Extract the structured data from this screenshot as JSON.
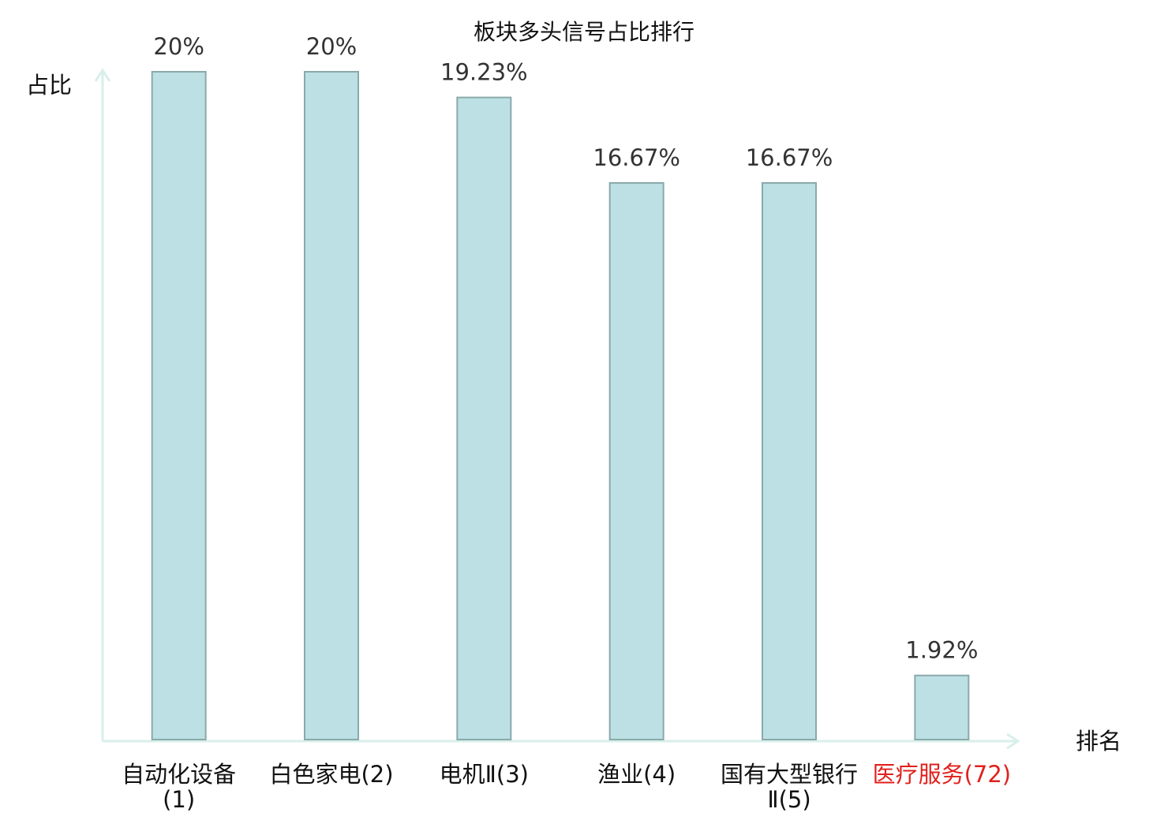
{
  "chart_data": {
    "type": "bar",
    "title": "板块多头信号占比排行",
    "y_label": "占比",
    "x_label": "排名",
    "categories": [
      "自动化设备(1)",
      "白色家电(2)",
      "电机Ⅱ(3)",
      "渔业(4)",
      "国有大型银行Ⅱ(5)",
      "医疗服务(72)"
    ],
    "values": [
      20,
      20,
      19.23,
      16.67,
      16.67,
      1.92
    ],
    "value_labels": [
      "20%",
      "20%",
      "19.23%",
      "16.67%",
      "16.67%",
      "1.92%"
    ],
    "color": "#bce0e3",
    "edge_color": "#8aa9ab",
    "axis_color": "#d8efeb",
    "label_colors": [
      "#111111",
      "#111111",
      "#111111",
      "#111111",
      "#111111",
      "#e0201c"
    ],
    "ylim": [
      0,
      20
    ]
  }
}
